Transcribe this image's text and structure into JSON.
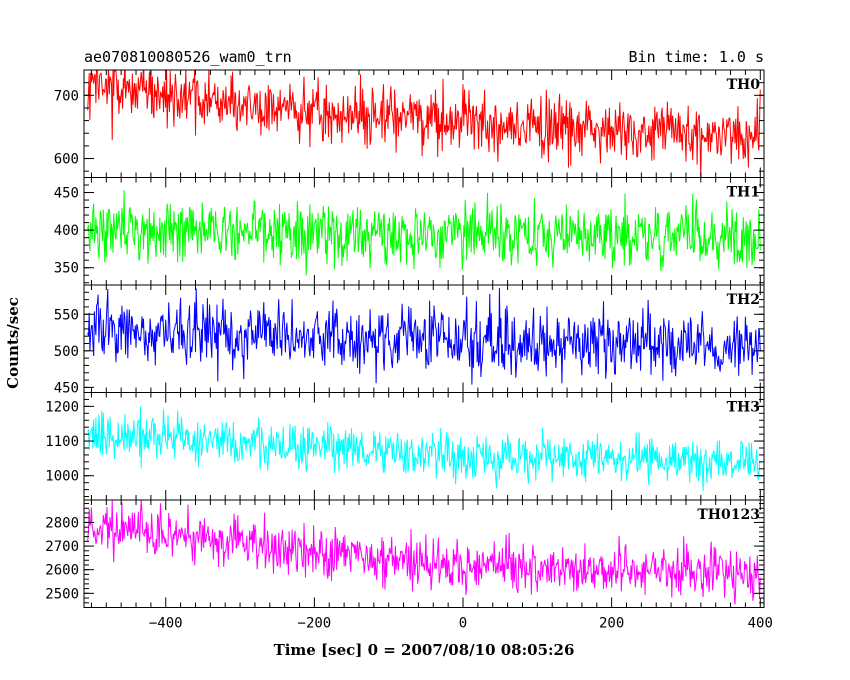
{
  "header": {
    "title": "ae070810080526_wam0_trn",
    "bin_time": "Bin time: 1.0 s"
  },
  "chart_data": {
    "type": "line",
    "xlabel": "Time [sec] 0 = 2007/08/10 08:05:26",
    "ylabel": "Counts/sec",
    "xlim": [
      -510,
      405
    ],
    "x_ticks": [
      -400,
      -200,
      0,
      200,
      400
    ],
    "x_tick_labels": [
      "−400",
      "−200",
      "0",
      "200",
      "400"
    ],
    "x_range": [
      -505,
      400
    ],
    "x_step": 1,
    "panels": [
      {
        "name": "TH0",
        "color": "#ff0000",
        "ylim": [
          570,
          740
        ],
        "y_ticks": [
          600,
          700
        ],
        "y_minor_step": 20,
        "trend": [
          [
            -505,
            710
          ],
          [
            -200,
            675
          ],
          [
            100,
            650
          ],
          [
            400,
            635
          ]
        ],
        "noise_sd": 24
      },
      {
        "name": "TH1",
        "color": "#00ff00",
        "ylim": [
          327,
          470
        ],
        "y_ticks": [
          350,
          400,
          450
        ],
        "y_minor_step": 10,
        "trend": [
          [
            -505,
            402
          ],
          [
            -200,
            396
          ],
          [
            100,
            393
          ],
          [
            400,
            388
          ]
        ],
        "noise_sd": 20
      },
      {
        "name": "TH2",
        "color": "#0000ff",
        "ylim": [
          443,
          590
        ],
        "y_ticks": [
          450,
          500,
          550
        ],
        "y_minor_step": 10,
        "trend": [
          [
            -505,
            530
          ],
          [
            -200,
            518
          ],
          [
            100,
            510
          ],
          [
            400,
            507
          ]
        ],
        "noise_sd": 22
      },
      {
        "name": "TH3",
        "color": "#00ffff",
        "ylim": [
          930,
          1240
        ],
        "y_ticks": [
          1000,
          1100,
          1200
        ],
        "y_minor_step": 20,
        "trend": [
          [
            -505,
            1125
          ],
          [
            -250,
            1090
          ],
          [
            0,
            1055
          ],
          [
            400,
            1040
          ]
        ],
        "noise_sd": 33
      },
      {
        "name": "TH0123",
        "color": "#ff00ff",
        "ylim": [
          2440,
          2895
        ],
        "y_ticks": [
          2500,
          2600,
          2700,
          2800
        ],
        "y_minor_step": 20,
        "trend": [
          [
            -505,
            2790
          ],
          [
            -300,
            2720
          ],
          [
            -150,
            2650
          ],
          [
            100,
            2610
          ],
          [
            400,
            2575
          ]
        ],
        "noise_sd": 52
      }
    ]
  }
}
